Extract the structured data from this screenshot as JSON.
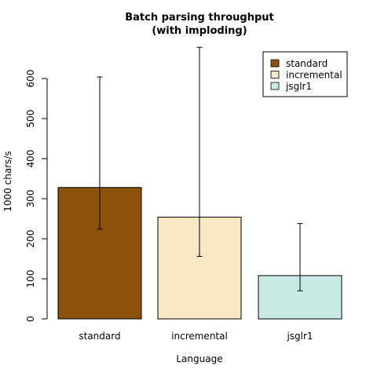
{
  "chart_data": {
    "type": "bar",
    "title_line1": "Batch parsing throughput",
    "title_line2": "(with imploding)",
    "xlabel": "Language",
    "ylabel": "1000 chars/s",
    "categories": [
      "standard",
      "incremental",
      "jsglr1"
    ],
    "values": [
      328,
      254,
      108
    ],
    "error_low": [
      224,
      156,
      70
    ],
    "error_high": [
      604,
      678,
      238
    ],
    "colors": [
      "#8c510a",
      "#f6e8c3",
      "#c7eae5"
    ],
    "yticks": [
      "0",
      "100",
      "200",
      "300",
      "400",
      "500",
      "600"
    ],
    "ylim": [
      0,
      680
    ],
    "grid": false,
    "legend_position": "top-right",
    "legend": [
      "standard",
      "incremental",
      "jsglr1"
    ]
  }
}
